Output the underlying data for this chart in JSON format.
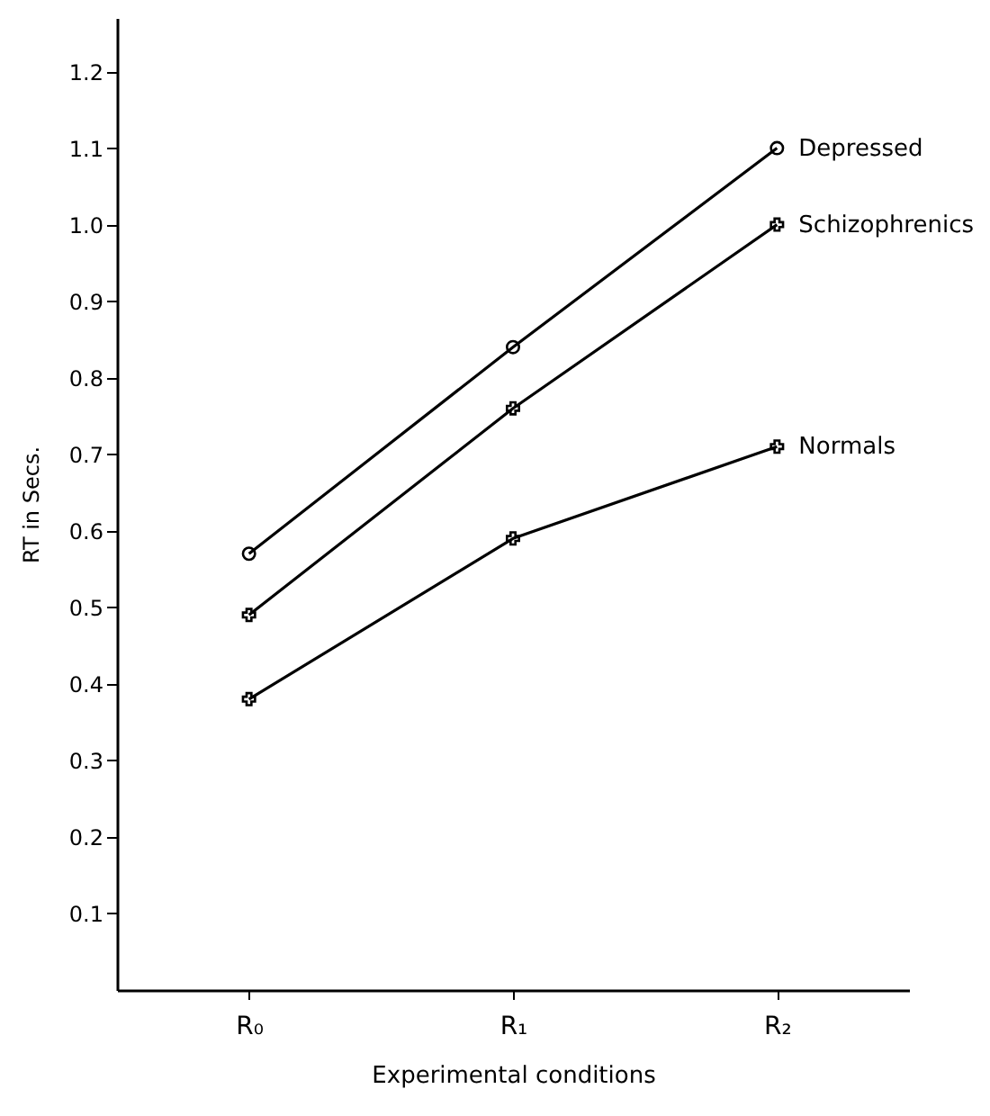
{
  "chart_data": {
    "type": "line",
    "xlabel": "Experimental conditions",
    "ylabel": "RT in Secs.",
    "categories": [
      "R₀",
      "R₁",
      "R₂"
    ],
    "series": [
      {
        "name": "Depressed",
        "color": "#000000",
        "marker": "circle",
        "values": [
          0.57,
          0.84,
          1.1
        ]
      },
      {
        "name": "Schizophrenics",
        "color": "#000000",
        "marker": "cross",
        "values": [
          0.49,
          0.76,
          1.0
        ]
      },
      {
        "name": "Normals",
        "color": "#000000",
        "marker": "cross",
        "values": [
          0.38,
          0.59,
          0.71
        ]
      }
    ],
    "ylim": [
      0,
      1.27
    ],
    "yticks": [
      0.1,
      0.2,
      0.3,
      0.4,
      0.5,
      0.6,
      0.7,
      0.8,
      0.9,
      {
        "value": 1,
        "label": "1.0"
      },
      1.1,
      1.2
    ],
    "grid": false,
    "legend": false,
    "line_style": "solid"
  }
}
